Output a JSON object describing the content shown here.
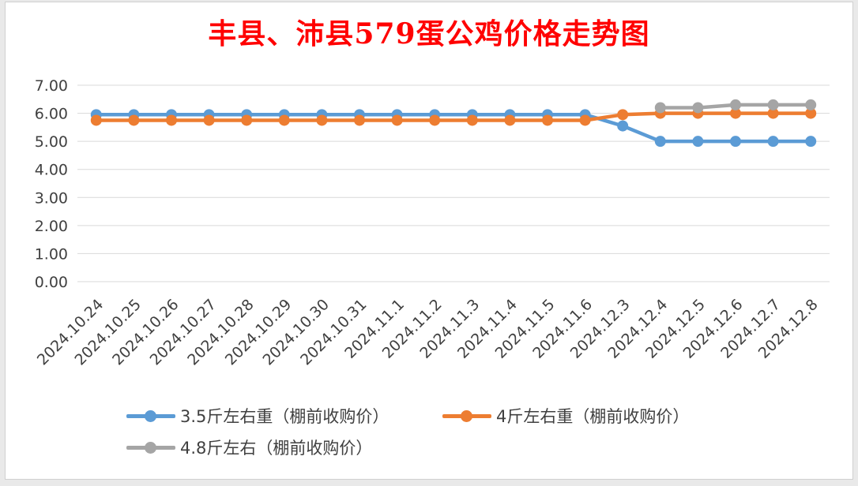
{
  "chart_data": {
    "type": "line",
    "title": "丰县、沛县579蛋公鸡价格走势图",
    "categories": [
      "2024.10.24",
      "2024.10.25",
      "2024.10.26",
      "2024.10.27",
      "2024.10.28",
      "2024.10.29",
      "2024.10.30",
      "2024.10.31",
      "2024.11.1",
      "2024.11.2",
      "2024.11.3",
      "2024.11.4",
      "2024.11.5",
      "2024.11.6",
      "2024.12.3",
      "2024.12.4",
      "2024.12.5",
      "2024.12.6",
      "2024.12.7",
      "2024.12.8"
    ],
    "ylim": [
      0,
      7
    ],
    "yticks": [
      "0.00",
      "1.00",
      "2.00",
      "3.00",
      "4.00",
      "5.00",
      "6.00",
      "7.00"
    ],
    "grid": true,
    "legend_position": "bottom",
    "series": [
      {
        "name": "3.5斤左右重（棚前收购价）",
        "color": "#5b9bd5",
        "values": [
          5.95,
          5.95,
          5.95,
          5.95,
          5.95,
          5.95,
          5.95,
          5.95,
          5.95,
          5.95,
          5.95,
          5.95,
          5.95,
          5.95,
          5.55,
          5.0,
          5.0,
          5.0,
          5.0,
          5.0
        ]
      },
      {
        "name": "4斤左右重（棚前收购价）",
        "color": "#ed7d31",
        "values": [
          5.75,
          5.75,
          5.75,
          5.75,
          5.75,
          5.75,
          5.75,
          5.75,
          5.75,
          5.75,
          5.75,
          5.75,
          5.75,
          5.75,
          5.95,
          6.0,
          6.0,
          6.0,
          6.0,
          6.0
        ]
      },
      {
        "name": "4.8斤左右（棚前收购价）",
        "color": "#a5a5a5",
        "values": [
          null,
          null,
          null,
          null,
          null,
          null,
          null,
          null,
          null,
          null,
          null,
          null,
          null,
          null,
          null,
          6.2,
          6.2,
          6.3,
          6.3,
          6.3
        ]
      }
    ]
  }
}
